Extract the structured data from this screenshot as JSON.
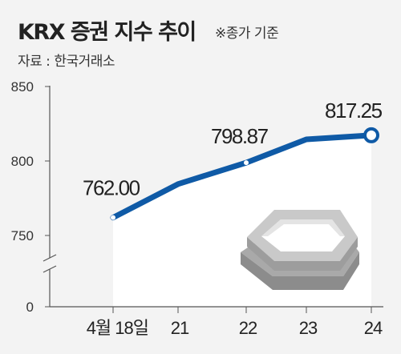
{
  "title": "KRX 증권 지수 추이",
  "note": "※종가 기준",
  "source": "자료 : 한국거래소",
  "colors": {
    "line": "#0f5aa6",
    "plot_bg": "#ffffff",
    "page_bg": "#f3f3f3",
    "axis": "#555555",
    "grid": "#bbbbbb"
  },
  "icon": "securities-index-cube-icon",
  "chart_data": {
    "type": "line",
    "title": "KRX 증권 지수 추이",
    "xlabel": "",
    "ylabel": "",
    "categories": [
      "4월 18일",
      "21",
      "22",
      "23",
      "24"
    ],
    "series": [
      {
        "values": [
          762.0,
          784.5,
          798.87,
          814.5,
          817.25
        ]
      }
    ],
    "data_labels": [
      "762.00",
      "",
      "798.87",
      "",
      "817.25"
    ],
    "yticks": [
      "850",
      "800",
      "750",
      "0"
    ],
    "ylim": [
      700,
      850
    ],
    "axis_break": true,
    "grid": false,
    "legend": "none"
  }
}
